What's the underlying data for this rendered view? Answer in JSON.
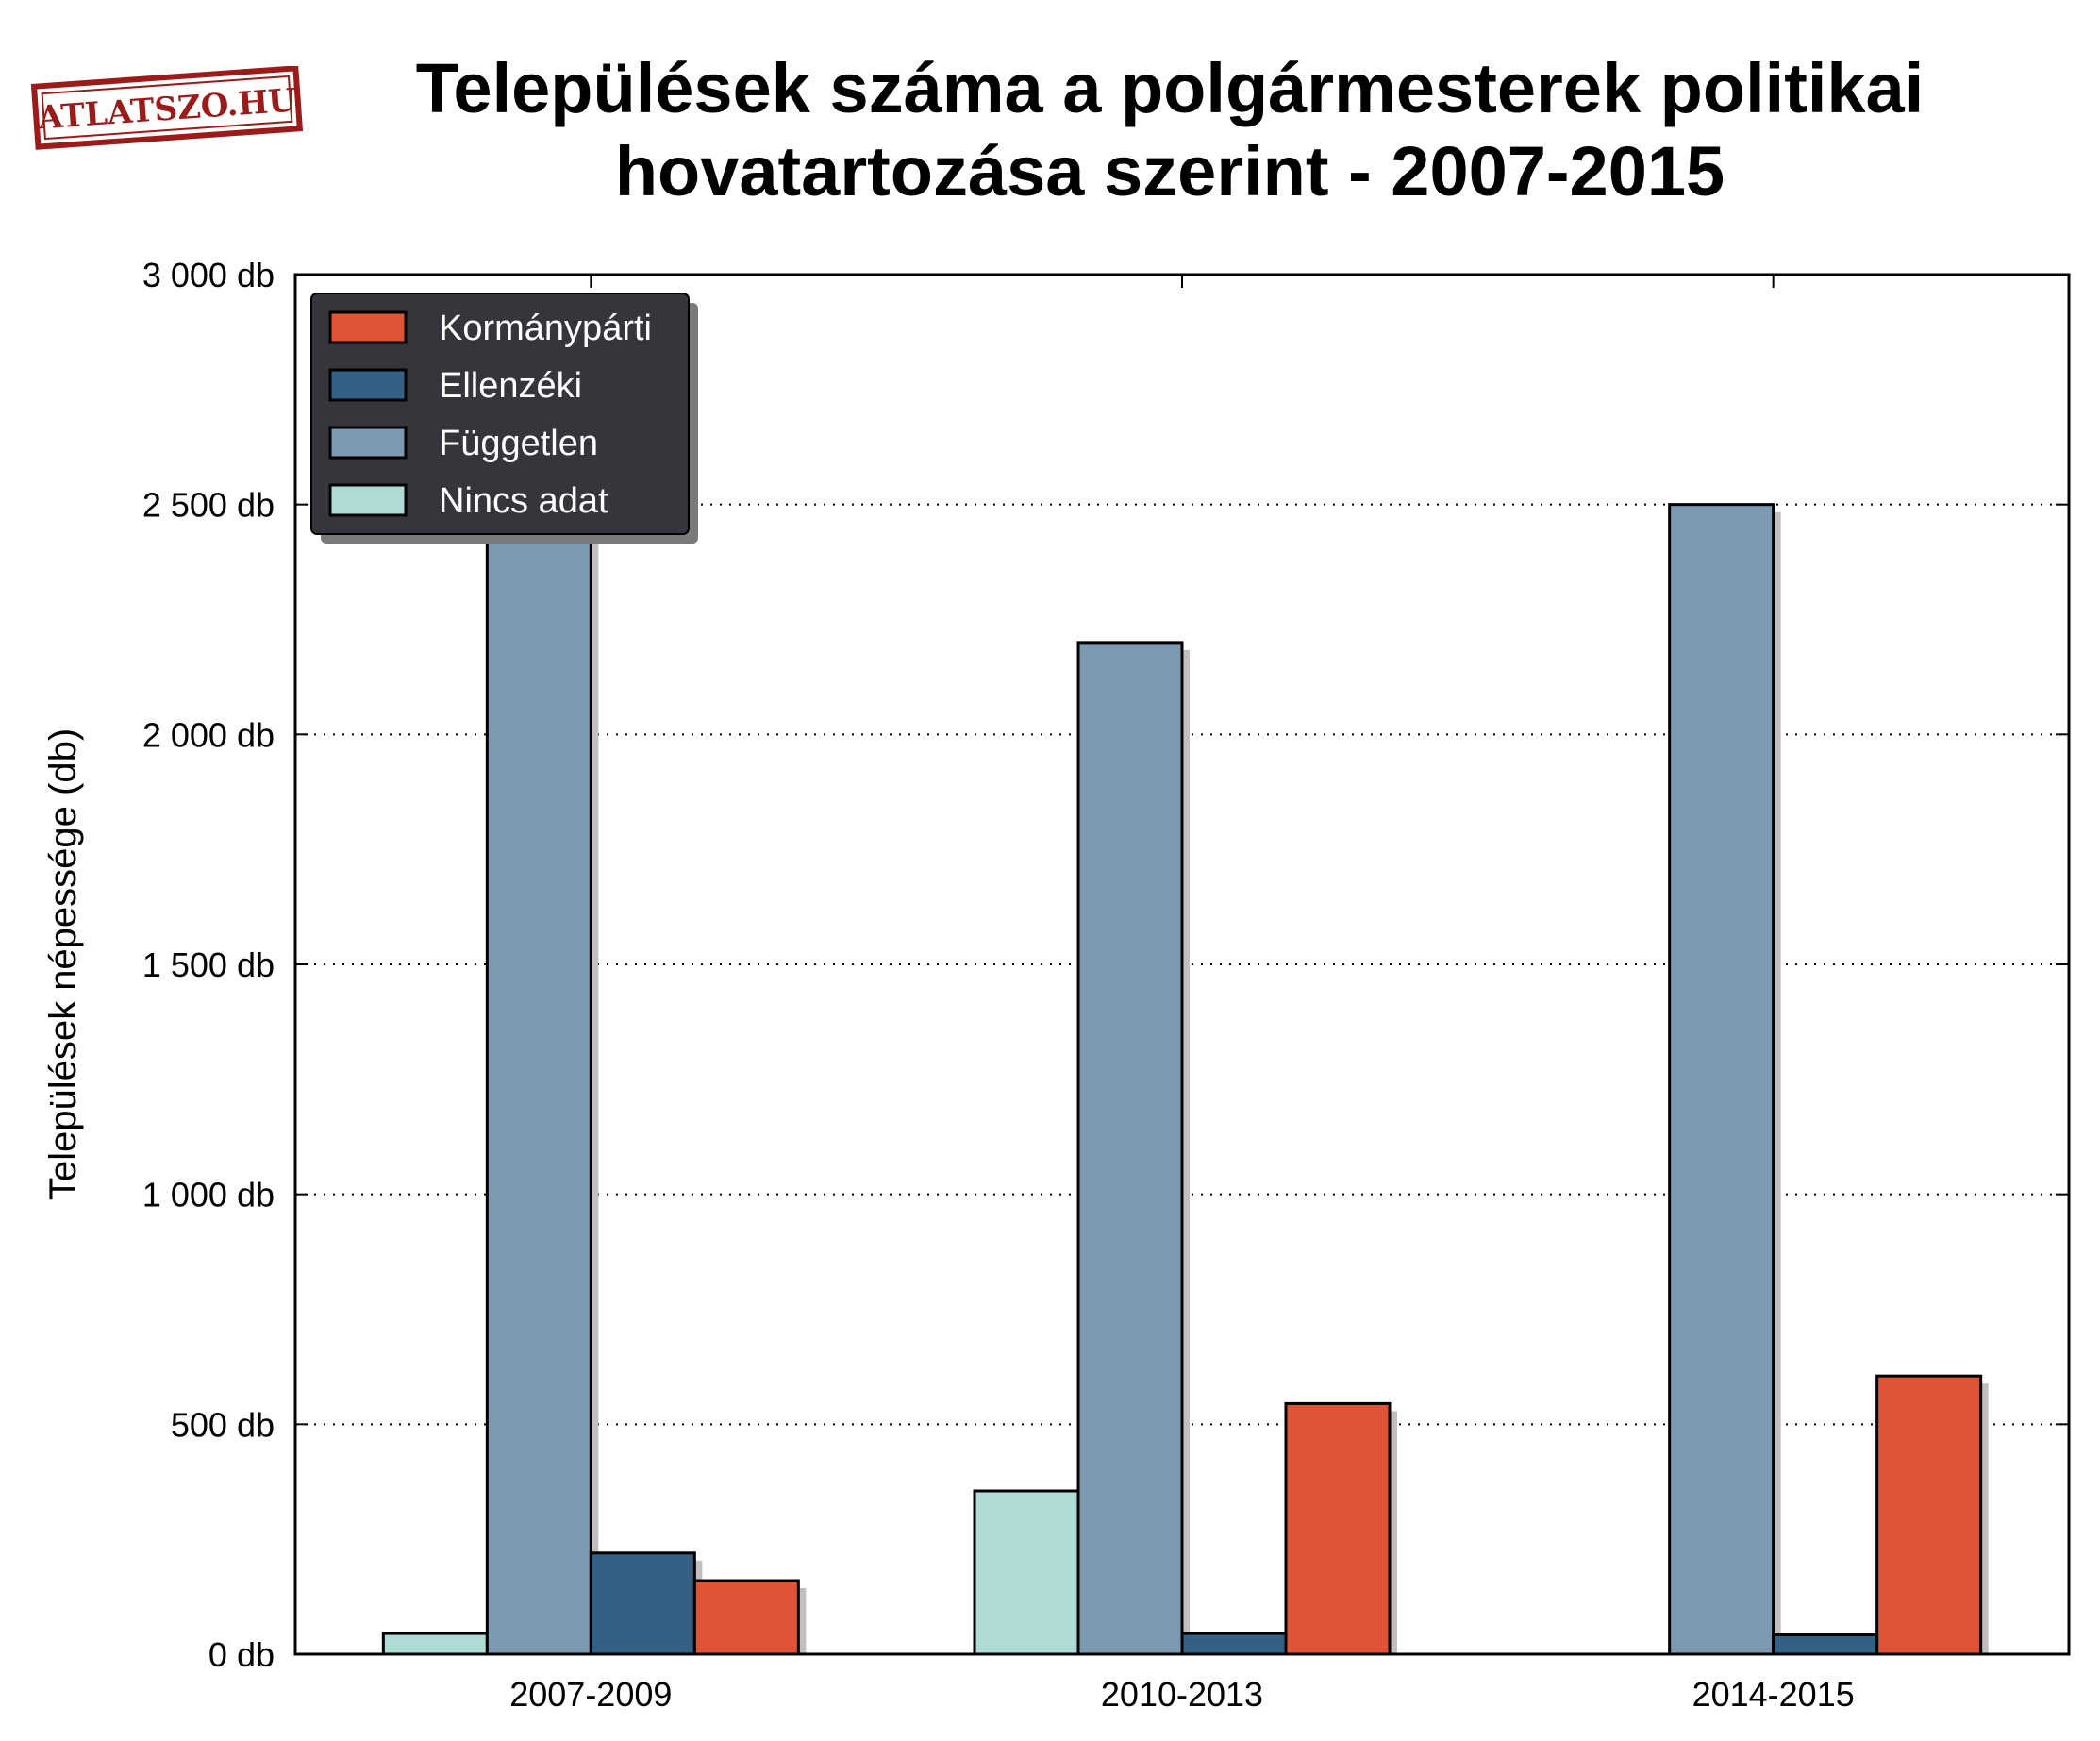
{
  "logo": {
    "text": "ATLATSZO.HU",
    "color": "#9b1b1b"
  },
  "chart_data": {
    "type": "bar",
    "title": [
      "Települések száma a polgármesterek politikai",
      "hovatartozása szerint - 2007-2015"
    ],
    "ylabel": "Települések népessége (db)",
    "xlabel": "",
    "categories": [
      "2007-2009",
      "2010-2013",
      "2014-2015"
    ],
    "ylim": [
      0,
      3000
    ],
    "yticks": [
      0,
      500,
      1000,
      1500,
      2000,
      2500,
      3000
    ],
    "ytick_labels": [
      "0 db",
      "500 db",
      "1 000 db",
      "1 500 db",
      "2 000 db",
      "2 500 db",
      "3 000 db"
    ],
    "grid": "horizontal dotted",
    "legend_position": "top-left",
    "series": [
      {
        "name": "Nincs adat",
        "color": "#afdbd7",
        "values": [
          45,
          355,
          0
        ]
      },
      {
        "name": "Független",
        "color": "#7e9ab2",
        "values": [
          2520,
          2200,
          2500
        ]
      },
      {
        "name": "Ellenzéki",
        "color": "#336085",
        "values": [
          220,
          45,
          42
        ]
      },
      {
        "name": "Kormánypárti",
        "color": "#df5435",
        "values": [
          160,
          545,
          605
        ]
      }
    ],
    "legend_order": [
      "Kormánypárti",
      "Ellenzéki",
      "Független",
      "Nincs adat"
    ]
  }
}
